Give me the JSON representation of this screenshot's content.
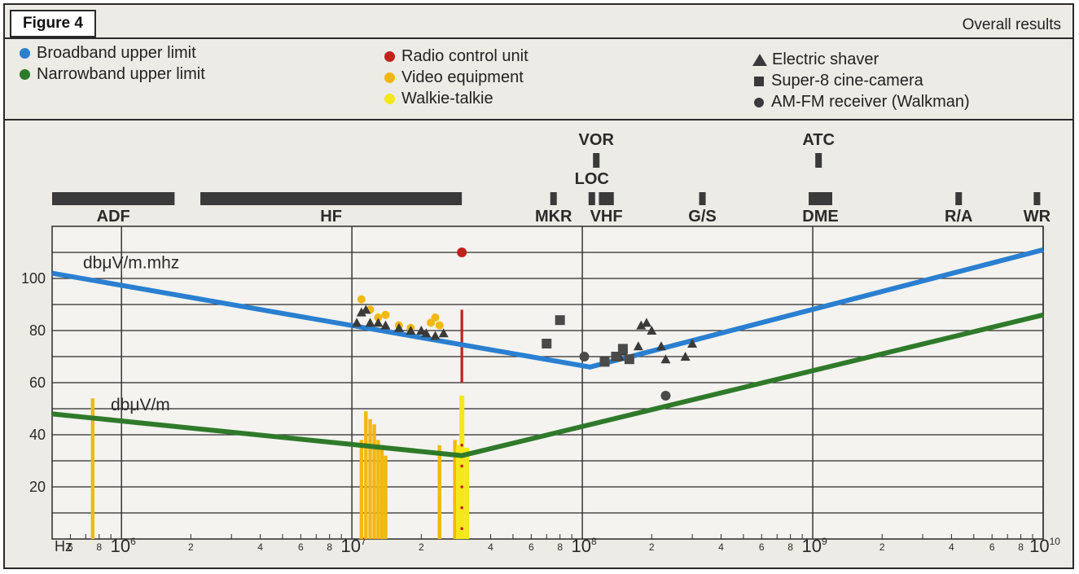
{
  "header": {
    "figure_label": "Figure 4",
    "title": "Overall results"
  },
  "legend": {
    "lines": [
      {
        "label": "Broadband upper limit",
        "color": "#2a7fd0"
      },
      {
        "label": "Narrowband upper limit",
        "color": "#2f7a2a"
      }
    ],
    "devices": [
      {
        "label": "Radio control unit",
        "color": "#c0221c"
      },
      {
        "label": "Video equipment",
        "color": "#f2b810"
      },
      {
        "label": "Walkie-talkie",
        "color": "#f4e81a"
      }
    ],
    "markers": [
      {
        "label": "Electric shaver",
        "icon": "triangle-icon"
      },
      {
        "label": "Super-8 cine-camera",
        "icon": "square-icon"
      },
      {
        "label": "AM-FM receiver (Walkman)",
        "icon": "circle-icon"
      }
    ]
  },
  "chart_data": {
    "type": "line",
    "x_scale": "log",
    "x_unit": "Hz",
    "xlim": [
      500000,
      10000000000
    ],
    "ylim": [
      0,
      120
    ],
    "yticks": [
      20,
      40,
      60,
      80,
      100
    ],
    "grid": true,
    "x_decade_labels": [
      {
        "value": 1000000,
        "base": "10",
        "exp": "6"
      },
      {
        "value": 10000000,
        "base": "10",
        "exp": "7"
      },
      {
        "value": 100000000,
        "base": "10",
        "exp": "8"
      },
      {
        "value": 1000000000,
        "base": "10",
        "exp": "9"
      },
      {
        "value": 10000000000,
        "base": "10",
        "exp": "10"
      }
    ],
    "x_minor_labels": [
      "2",
      "4",
      "6",
      "8"
    ],
    "x_origin_label": "Hz",
    "series": [
      {
        "name": "Broadband upper limit",
        "color": "#2a7fd0",
        "curve_label": "dbμV/m.mhz",
        "points": [
          [
            500000,
            102
          ],
          [
            108000000,
            66
          ],
          [
            10000000000,
            111
          ]
        ]
      },
      {
        "name": "Narrowband upper limit",
        "color": "#2f7a2a",
        "curve_label": "dbμV/m",
        "points": [
          [
            500000,
            48
          ],
          [
            30000000,
            32
          ],
          [
            10000000000,
            86
          ]
        ]
      }
    ],
    "radio_control_unit": {
      "points": [
        [
          30000000,
          110
        ]
      ],
      "bar": {
        "x": 30000000,
        "y0": 60,
        "y1": 88
      },
      "color": "#c0221c"
    },
    "video_equipment": {
      "points": [
        [
          11000000,
          92
        ],
        [
          12000000,
          88
        ],
        [
          13000000,
          85
        ],
        [
          14000000,
          86
        ],
        [
          16000000,
          82
        ],
        [
          18000000,
          81
        ],
        [
          22000000,
          83
        ],
        [
          23000000,
          85
        ],
        [
          24000000,
          82
        ]
      ],
      "bars": [
        [
          750000,
          54
        ],
        [
          11000000,
          38
        ],
        [
          11500000,
          49
        ],
        [
          12000000,
          46
        ],
        [
          12500000,
          44
        ],
        [
          13000000,
          38
        ],
        [
          13500000,
          36
        ],
        [
          14000000,
          32
        ],
        [
          24000000,
          36
        ],
        [
          28000000,
          38
        ]
      ],
      "color": "#f2b810"
    },
    "walkie_talkie": {
      "bars": [
        [
          29000000,
          36
        ],
        [
          30000000,
          55
        ],
        [
          31500000,
          35
        ]
      ],
      "color": "#f4e81a"
    },
    "electric_shaver": [
      [
        10500000,
        83
      ],
      [
        11000000,
        87
      ],
      [
        11500000,
        88
      ],
      [
        12000000,
        83
      ],
      [
        13000000,
        83
      ],
      [
        14000000,
        82
      ],
      [
        16000000,
        81
      ],
      [
        18000000,
        80
      ],
      [
        20000000,
        80
      ],
      [
        21000000,
        79
      ],
      [
        23000000,
        78
      ],
      [
        25000000,
        79
      ],
      [
        145000000,
        70
      ],
      [
        150000000,
        72
      ],
      [
        175000000,
        74
      ],
      [
        180000000,
        82
      ],
      [
        190000000,
        83
      ],
      [
        200000000,
        80
      ],
      [
        220000000,
        74
      ],
      [
        230000000,
        69
      ],
      [
        280000000,
        70
      ],
      [
        300000000,
        75
      ]
    ],
    "super8_camera": [
      [
        70000000,
        75
      ],
      [
        80000000,
        84
      ],
      [
        125000000,
        68
      ],
      [
        140000000,
        70
      ],
      [
        150000000,
        73
      ],
      [
        160000000,
        69
      ]
    ],
    "am_fm_receiver": [
      [
        102000000,
        70
      ],
      [
        230000000,
        55
      ]
    ],
    "bands": [
      {
        "label": "ADF",
        "range": [
          500000,
          1700000
        ]
      },
      {
        "label": "HF",
        "range": [
          2200000,
          30000000
        ]
      },
      {
        "label": "MKR",
        "range": [
          74000000,
          76000000
        ]
      },
      {
        "label": "LOC",
        "range": [
          108000000,
          112000000
        ]
      },
      {
        "label": "VHF",
        "range": [
          118000000,
          137000000
        ]
      },
      {
        "label": "VOR",
        "range": [
          112000000,
          118000000
        ]
      },
      {
        "label": "G/S",
        "range": [
          328000000,
          336000000
        ]
      },
      {
        "label": "DME",
        "range": [
          960000000,
          1215000000
        ]
      },
      {
        "label": "ATC",
        "range": [
          1030000000,
          1090000000
        ]
      },
      {
        "label": "R/A",
        "range": [
          4200000000,
          4400000000
        ]
      },
      {
        "label": "WR",
        "range": [
          9300000000,
          9500000000
        ]
      }
    ]
  }
}
